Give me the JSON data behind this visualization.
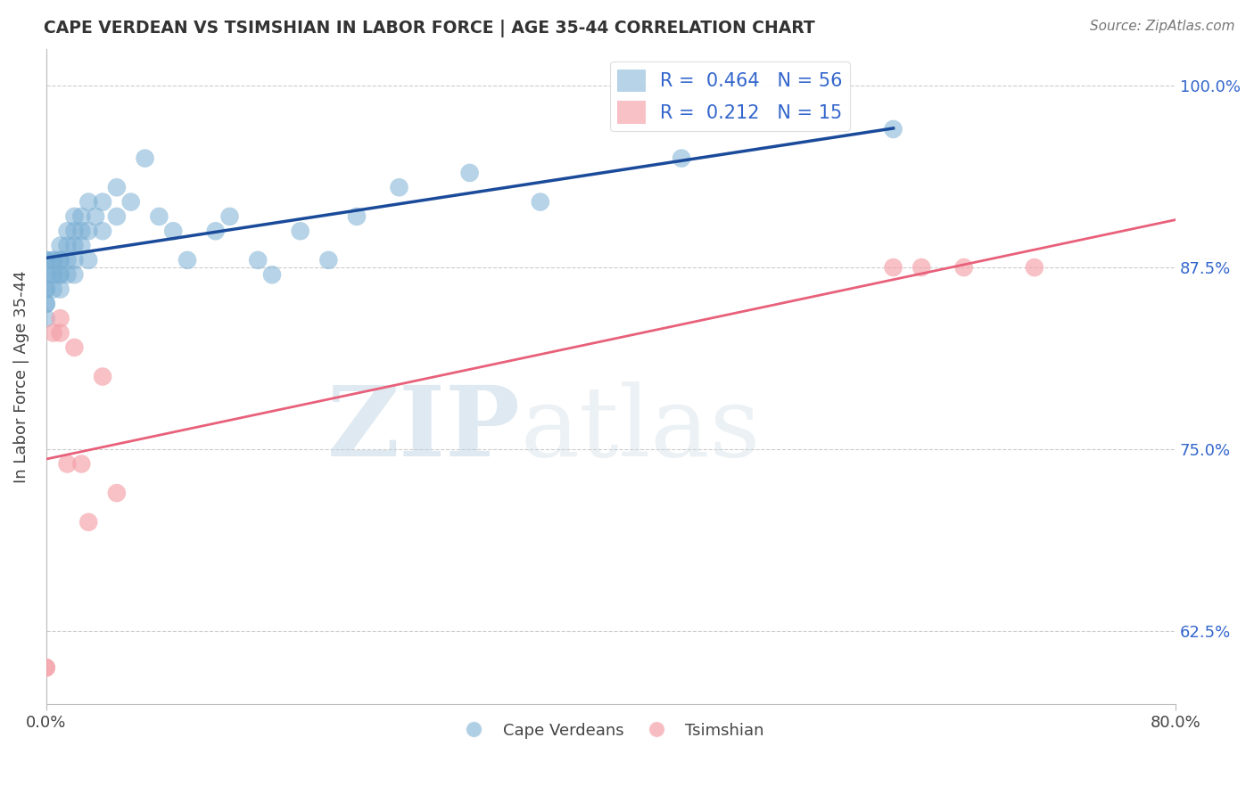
{
  "title": "CAPE VERDEAN VS TSIMSHIAN IN LABOR FORCE | AGE 35-44 CORRELATION CHART",
  "source_text": "Source: ZipAtlas.com",
  "ylabel": "In Labor Force | Age 35-44",
  "xlim": [
    0.0,
    0.8
  ],
  "ylim": [
    0.575,
    1.025
  ],
  "ytick_labels": [
    "62.5%",
    "75.0%",
    "87.5%",
    "100.0%"
  ],
  "ytick_values": [
    0.625,
    0.75,
    0.875,
    1.0
  ],
  "grid_color": "#cccccc",
  "background_color": "#ffffff",
  "blue_color": "#7bafd4",
  "pink_color": "#f4a0a8",
  "blue_line_color": "#1a4a9a",
  "pink_line_color": "#e8607a",
  "R_blue": 0.464,
  "N_blue": 56,
  "R_pink": 0.212,
  "N_pink": 15,
  "label_blue": "Cape Verdeans",
  "label_pink": "Tsimshian",
  "blue_x": [
    0.0,
    0.0,
    0.0,
    0.0,
    0.0,
    0.0,
    0.0,
    0.0,
    0.005,
    0.005,
    0.005,
    0.005,
    0.005,
    0.01,
    0.01,
    0.01,
    0.01,
    0.01,
    0.01,
    0.015,
    0.015,
    0.015,
    0.015,
    0.02,
    0.02,
    0.02,
    0.02,
    0.02,
    0.025,
    0.025,
    0.025,
    0.03,
    0.03,
    0.03,
    0.035,
    0.04,
    0.04,
    0.05,
    0.05,
    0.06,
    0.07,
    0.08,
    0.09,
    0.1,
    0.12,
    0.13,
    0.15,
    0.16,
    0.18,
    0.2,
    0.22,
    0.25,
    0.3,
    0.35,
    0.45,
    0.6
  ],
  "blue_y": [
    0.88,
    0.88,
    0.87,
    0.86,
    0.86,
    0.85,
    0.85,
    0.84,
    0.88,
    0.88,
    0.87,
    0.87,
    0.86,
    0.89,
    0.88,
    0.88,
    0.87,
    0.87,
    0.86,
    0.9,
    0.89,
    0.88,
    0.87,
    0.91,
    0.9,
    0.89,
    0.88,
    0.87,
    0.91,
    0.9,
    0.89,
    0.92,
    0.9,
    0.88,
    0.91,
    0.92,
    0.9,
    0.93,
    0.91,
    0.92,
    0.95,
    0.91,
    0.9,
    0.88,
    0.9,
    0.91,
    0.88,
    0.87,
    0.9,
    0.88,
    0.91,
    0.93,
    0.94,
    0.92,
    0.95,
    0.97
  ],
  "pink_x": [
    0.0,
    0.0,
    0.005,
    0.01,
    0.01,
    0.02,
    0.03,
    0.04,
    0.05,
    0.6,
    0.62,
    0.65,
    0.7,
    0.015,
    0.025
  ],
  "pink_y": [
    0.6,
    0.6,
    0.83,
    0.83,
    0.84,
    0.82,
    0.7,
    0.8,
    0.72,
    0.875,
    0.875,
    0.875,
    0.875,
    0.74,
    0.74
  ]
}
